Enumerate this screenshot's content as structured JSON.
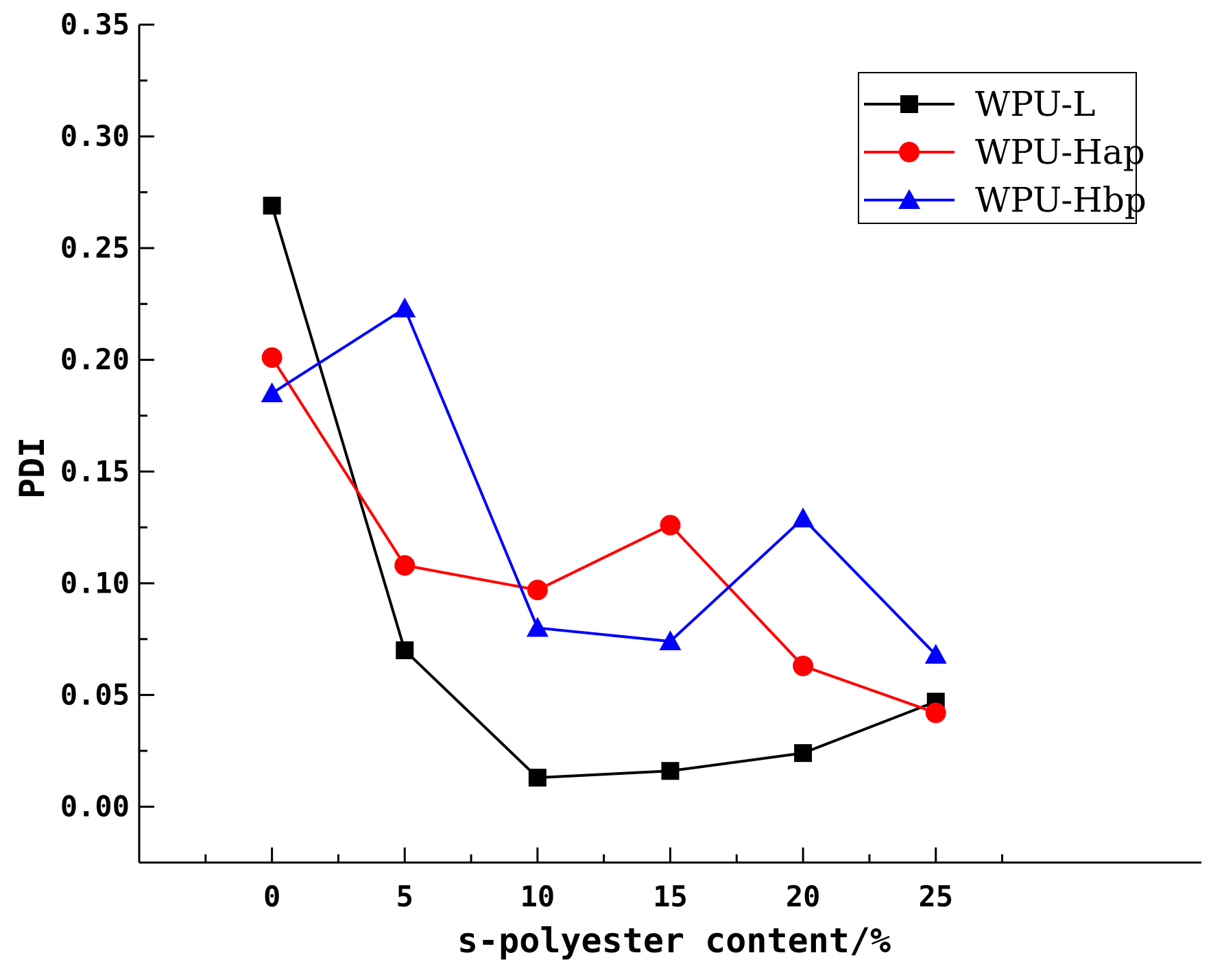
{
  "chart_data": {
    "type": "line",
    "title": "",
    "xlabel": "s-polyester content/%",
    "ylabel": "PDI",
    "xlim": [
      -5,
      35
    ],
    "ylim": [
      -0.025,
      0.35
    ],
    "x": [
      0,
      5,
      10,
      15,
      20,
      25
    ],
    "xticks": [
      0,
      5,
      10,
      15,
      20,
      25
    ],
    "xtick_labels": [
      "0",
      "5",
      "10",
      "15",
      "20",
      "25"
    ],
    "yticks": [
      0.0,
      0.05,
      0.1,
      0.15,
      0.2,
      0.25,
      0.3,
      0.35
    ],
    "ytick_labels": [
      "0.00",
      "0.05",
      "0.10",
      "0.15",
      "0.20",
      "0.25",
      "0.30",
      "0.35"
    ],
    "grid": false,
    "legend_position": "top-right",
    "series": [
      {
        "name": "WPU-L",
        "color": "#000000",
        "marker": "square",
        "values": [
          0.269,
          0.07,
          0.013,
          0.016,
          0.024,
          0.047
        ]
      },
      {
        "name": "WPU-Hap",
        "color": "#ff0000",
        "marker": "circle",
        "values": [
          0.201,
          0.108,
          0.097,
          0.126,
          0.063,
          0.042
        ]
      },
      {
        "name": "WPU-Hbp",
        "color": "#0000ff",
        "marker": "triangle",
        "values": [
          0.185,
          0.223,
          0.08,
          0.074,
          0.129,
          0.068
        ]
      }
    ]
  }
}
